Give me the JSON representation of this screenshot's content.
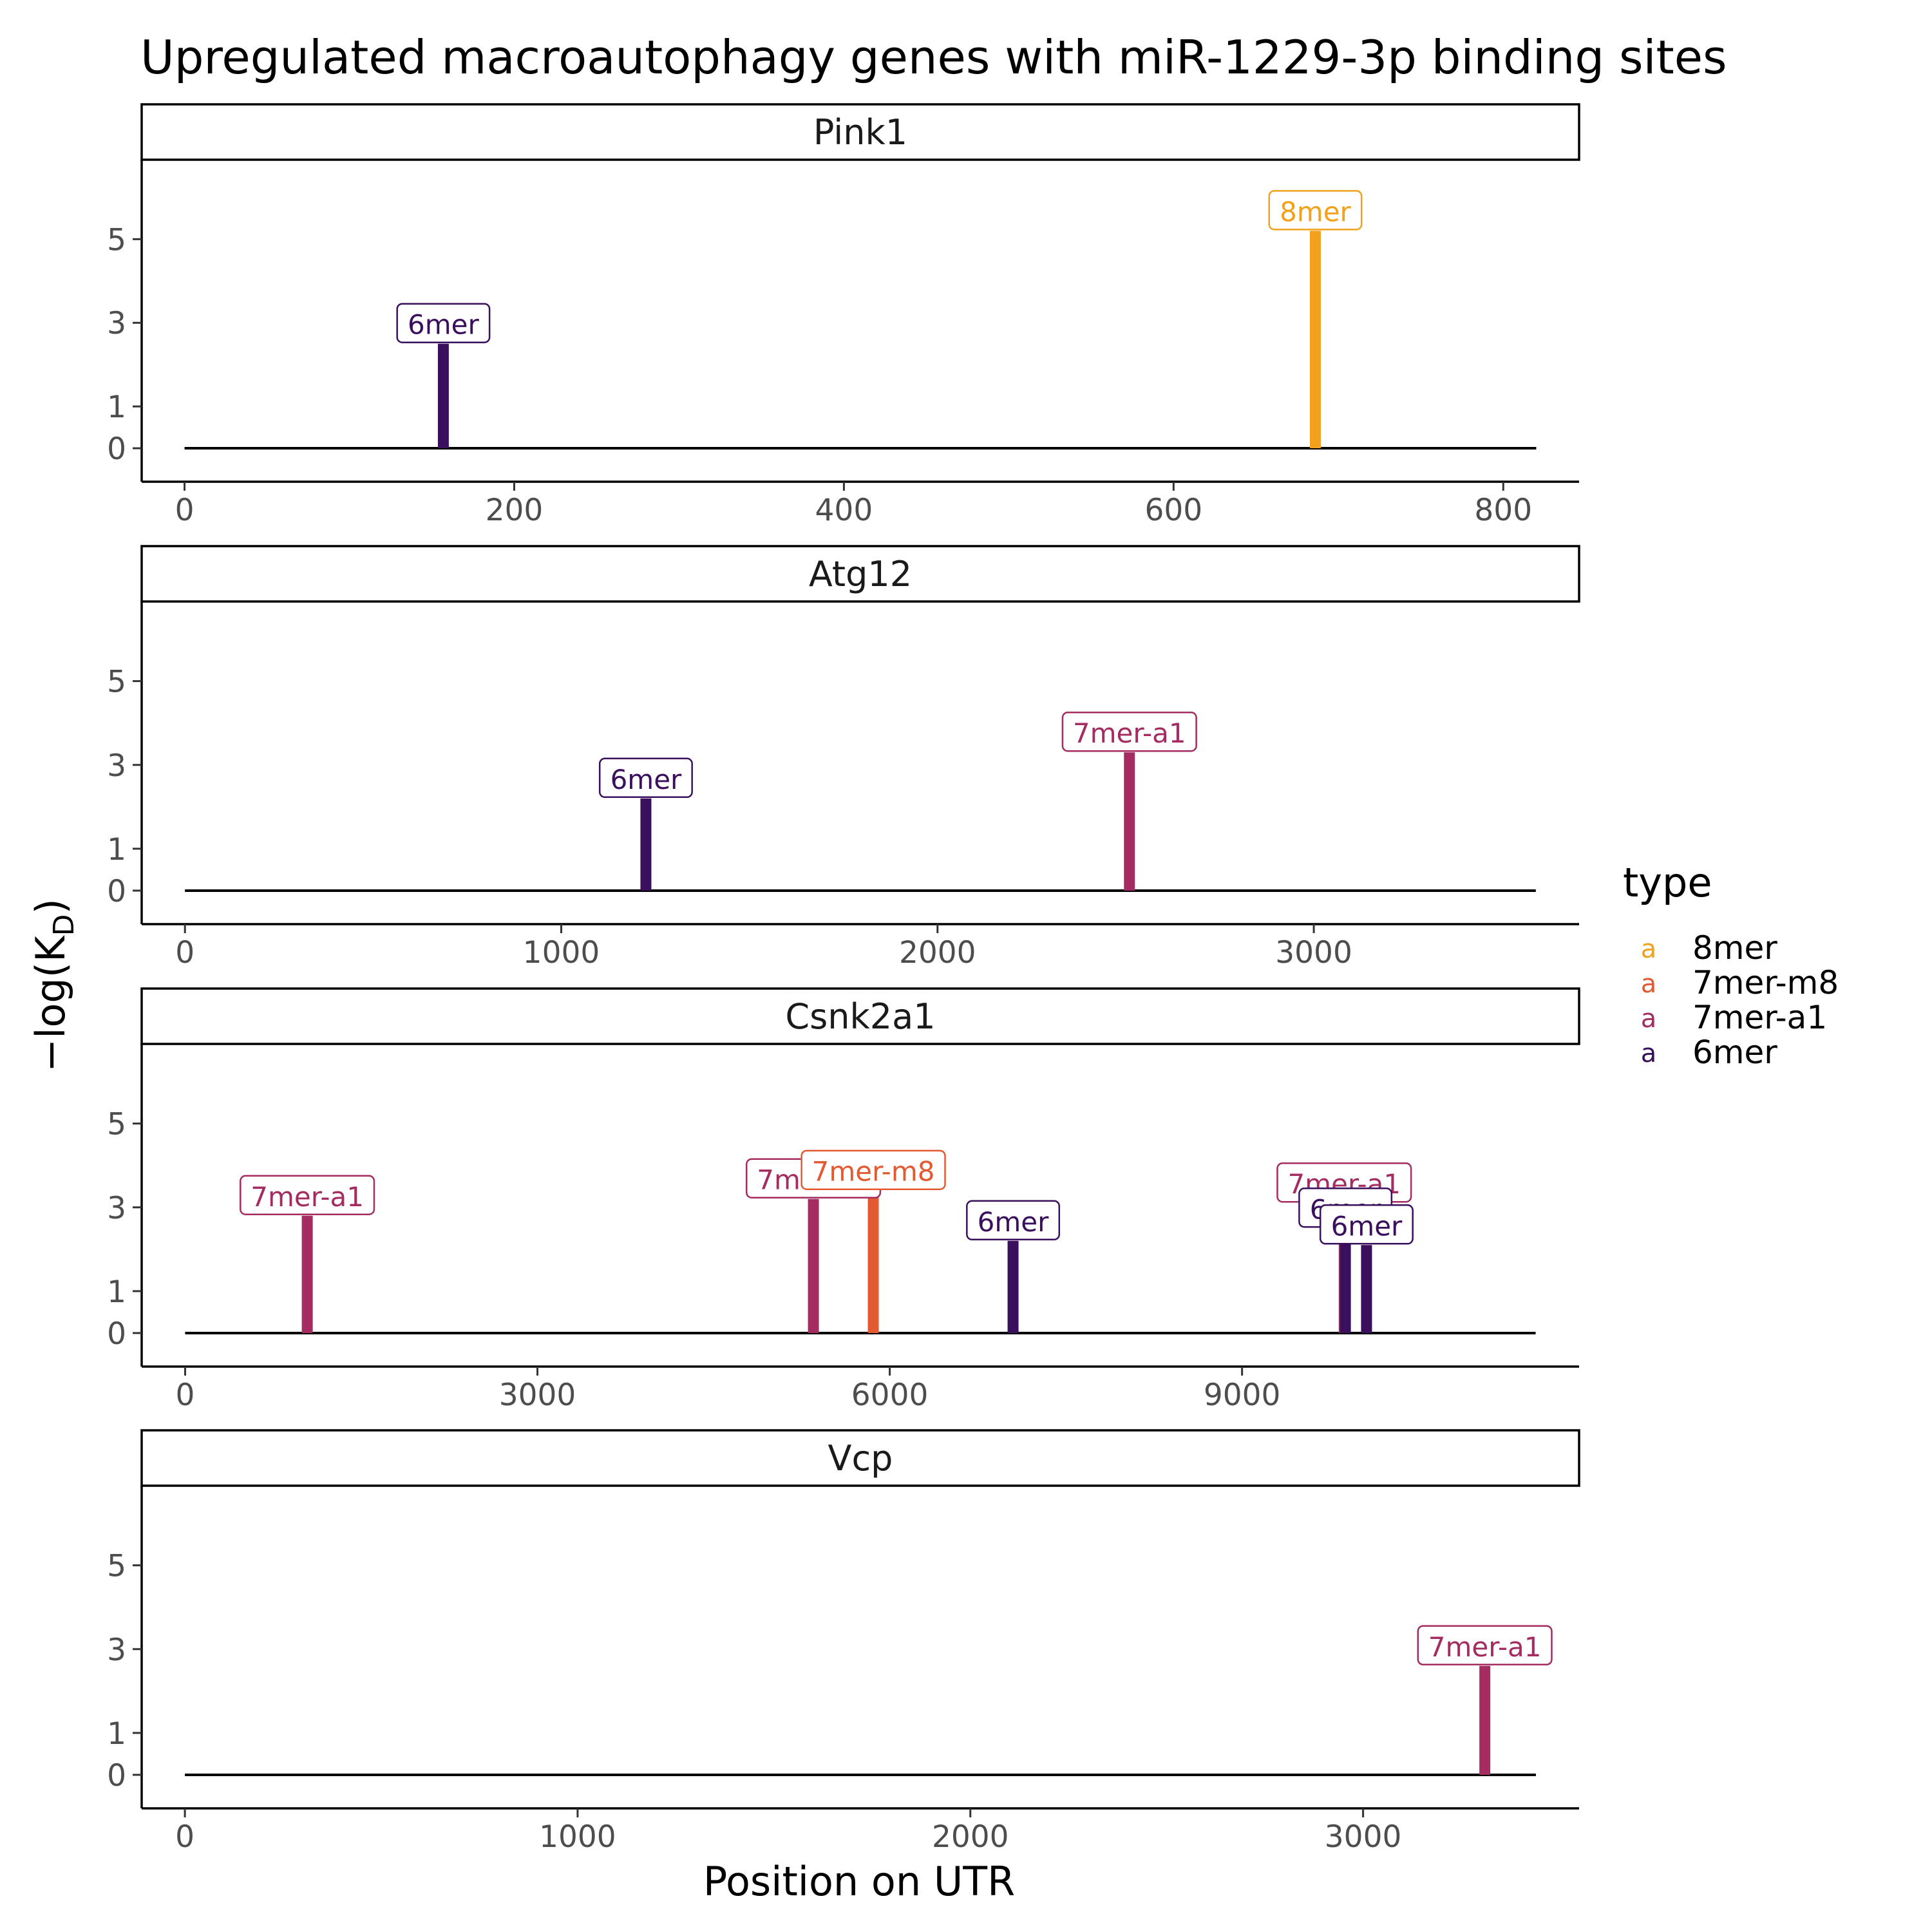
{
  "chart_data": {
    "type": "bar",
    "title": "Upregulated macroautophagy genes with miR-1229-3p binding sites",
    "xlabel": "Position on UTR",
    "ylabel_main": "−log(K",
    "ylabel_sub": "D",
    "ylabel_close": ")",
    "ylim": [
      -0.8,
      6.9
    ],
    "yticks": [
      0,
      1,
      3,
      5
    ],
    "legend": {
      "title": "type",
      "key_glyph": "a",
      "position": "right",
      "entries": [
        {
          "label": "8mer",
          "color": "#F2A11D"
        },
        {
          "label": "7mer-m8",
          "color": "#E35A32"
        },
        {
          "label": "7mer-a1",
          "color": "#A42C60"
        },
        {
          "label": "6mer",
          "color": "#3A0F5E"
        }
      ]
    },
    "type_colors": {
      "8mer": "#F2A11D",
      "7mer-m8": "#E35A32",
      "7mer-a1": "#A42C60",
      "6mer": "#3A0F5E"
    },
    "panels": [
      {
        "gene": "Pink1",
        "utr_length": 820,
        "xlim": [
          -26,
          846
        ],
        "xticks": [
          0,
          200,
          400,
          600,
          800
        ],
        "sites": [
          {
            "x": 157,
            "y": 2.5,
            "type": "6mer",
            "label": "6mer"
          },
          {
            "x": 686,
            "y": 5.2,
            "type": "8mer",
            "label": "8mer"
          }
        ]
      },
      {
        "gene": "Atg12",
        "utr_length": 3590,
        "xlim": [
          -115,
          3705
        ],
        "xticks": [
          0,
          1000,
          2000,
          3000
        ],
        "sites": [
          {
            "x": 1225,
            "y": 2.2,
            "type": "6mer",
            "label": "6mer"
          },
          {
            "x": 2510,
            "y": 3.3,
            "type": "7mer-a1",
            "label": "7mer-a1"
          }
        ]
      },
      {
        "gene": "Csnk2a1",
        "utr_length": 11500,
        "xlim": [
          -370,
          11870
        ],
        "xticks": [
          0,
          3000,
          6000,
          9000
        ],
        "sites": [
          {
            "x": 1040,
            "y": 2.8,
            "type": "7mer-a1",
            "label": "7mer-a1"
          },
          {
            "x": 5350,
            "y": 3.2,
            "type": "7mer-a1",
            "label": "7mer-a1"
          },
          {
            "x": 5860,
            "y": 3.4,
            "type": "7mer-m8",
            "label": "7mer-m8"
          },
          {
            "x": 7050,
            "y": 2.2,
            "type": "6mer",
            "label": "6mer"
          },
          {
            "x": 9870,
            "y": 3.1,
            "type": "7mer-a1",
            "label": "7mer-a1"
          },
          {
            "x": 9880,
            "y": 2.5,
            "type": "6mer",
            "label": "6mer"
          },
          {
            "x": 10060,
            "y": 2.1,
            "type": "6mer",
            "label": "6mer"
          }
        ]
      },
      {
        "gene": "Vcp",
        "utr_length": 3440,
        "xlim": [
          -110,
          3550
        ],
        "xticks": [
          0,
          1000,
          2000,
          3000
        ],
        "sites": [
          {
            "x": 3310,
            "y": 2.6,
            "type": "7mer-a1",
            "label": "7mer-a1"
          }
        ]
      }
    ]
  }
}
